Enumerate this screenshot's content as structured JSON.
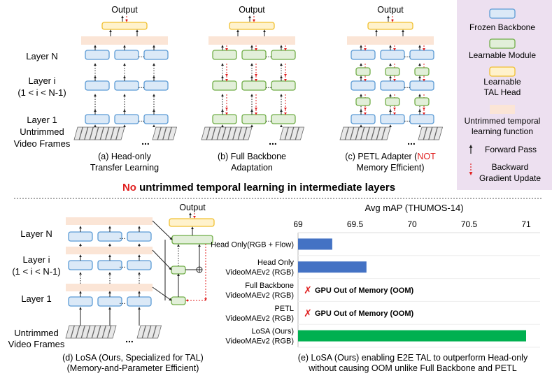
{
  "colors": {
    "frozen_fill": "#dbe9f7",
    "frozen_stroke": "#5b9bd5",
    "learnable_fill": "#e2efd9",
    "learnable_stroke": "#70ad47",
    "head_fill": "#fff2cc",
    "head_stroke": "#f0c030",
    "band_fill": "#fbe5d6",
    "legend_bg": "#ede0f0",
    "bar_blue": "#4472c4",
    "bar_green": "#00b050",
    "accent_red": "#e02020"
  },
  "top_panel": {
    "output_label": "Output",
    "row_labels": {
      "layer_n": "Layer N",
      "layer_i_1": "Layer i",
      "layer_i_2": "(1 < i < N-1)",
      "layer_1": "Layer 1",
      "frames_1": "Untrimmed",
      "frames_2": "Video Frames"
    },
    "ellipsis": "...",
    "captions": {
      "a_1": "(a) Head-only",
      "a_2": "Transfer Learning",
      "b_1": "(b) Full Backbone",
      "b_2": "Adaptation",
      "c_1": "(c) PETL Adapter (",
      "c_not": "NOT",
      "c_2": "Memory Efficient)"
    }
  },
  "legend": {
    "frozen": "Frozen Backbone",
    "learnable": "Learnable Module",
    "head_1": "Learnable",
    "head_2": "TAL Head",
    "band_1": "Untrimmed temporal",
    "band_2": "learning function",
    "forward": "Forward Pass",
    "backward_1": "Backward",
    "backward_2": "Gradient Update"
  },
  "headline": {
    "no": "No",
    "rest": " untrimmed temporal learning in intermediate layers"
  },
  "bottom_panel": {
    "output_label": "Output",
    "caption_1": "(d) LoSA (Ours, Specialized for TAL)",
    "caption_2": "(Memory-and-Parameter Efficient)"
  },
  "chart_caption": {
    "line_1": "(e) LoSA (Ours) enabling E2E TAL to outperform Head-only",
    "line_2": "without causing OOM unlike Full Backbone and PETL"
  },
  "chart_data": {
    "type": "bar",
    "orientation": "horizontal",
    "title": "Avg mAP (THUMOS-14)",
    "xlim": [
      69,
      71
    ],
    "xticks": [
      "69",
      "69.5",
      "70",
      "70.5",
      "71"
    ],
    "tick_values": [
      69,
      69.5,
      70,
      70.5,
      71
    ],
    "categories": [
      {
        "line_1": "Head Only(RGB + Flow)",
        "line_2": ""
      },
      {
        "line_1": "Head Only",
        "line_2": "VideoMAEv2 (RGB)"
      },
      {
        "line_1": "Full Backbone",
        "line_2": "VideoMAEv2 (RGB)"
      },
      {
        "line_1": "PETL",
        "line_2": "VideoMAEv2 (RGB)"
      },
      {
        "line_1": "LoSA (Ours)",
        "line_2": "VideoMAEv2 (RGB)"
      }
    ],
    "values": [
      69.3,
      69.6,
      null,
      null,
      71.0
    ],
    "bar_colors": [
      "#4472c4",
      "#4472c4",
      null,
      null,
      "#00b050"
    ],
    "oom_mark": "✗",
    "oom_label": "GPU Out of Memory (OOM)"
  }
}
